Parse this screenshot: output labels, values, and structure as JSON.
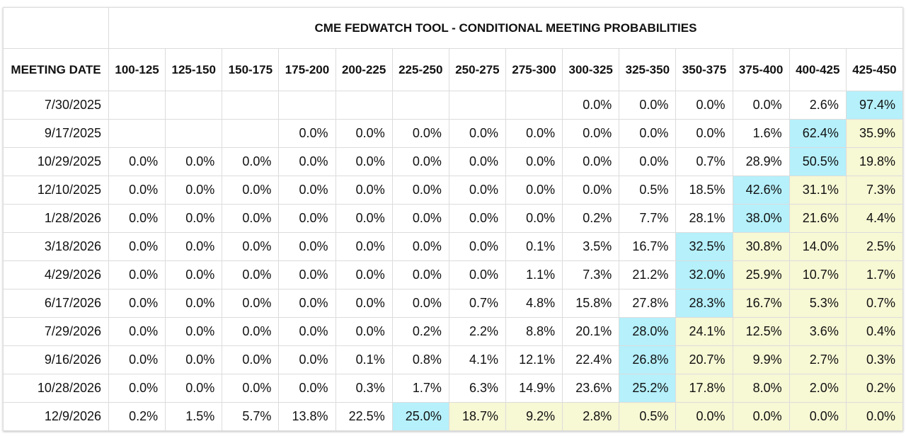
{
  "title": "CME FEDWATCH TOOL - CONDITIONAL MEETING PROBABILITIES",
  "row_header": "MEETING DATE",
  "columns": [
    "100-125",
    "125-150",
    "150-175",
    "175-200",
    "200-225",
    "225-250",
    "250-275",
    "275-300",
    "300-325",
    "325-350",
    "350-375",
    "375-400",
    "400-425",
    "425-450"
  ],
  "rows": [
    {
      "date": "7/30/2025",
      "values": [
        null,
        null,
        null,
        null,
        null,
        null,
        null,
        null,
        "0.0%",
        "0.0%",
        "0.0%",
        "0.0%",
        "2.6%",
        "97.4%"
      ],
      "colors": [
        null,
        null,
        null,
        null,
        null,
        null,
        null,
        null,
        null,
        null,
        null,
        null,
        null,
        "#b5f0fb"
      ]
    },
    {
      "date": "9/17/2025",
      "values": [
        null,
        null,
        null,
        "0.0%",
        "0.0%",
        "0.0%",
        "0.0%",
        "0.0%",
        "0.0%",
        "0.0%",
        "0.0%",
        "1.6%",
        "62.4%",
        "35.9%"
      ],
      "colors": [
        null,
        null,
        null,
        null,
        null,
        null,
        null,
        null,
        null,
        null,
        null,
        null,
        "#b5f0fb",
        "#f7f8d4"
      ]
    },
    {
      "date": "10/29/2025",
      "values": [
        "0.0%",
        "0.0%",
        "0.0%",
        "0.0%",
        "0.0%",
        "0.0%",
        "0.0%",
        "0.0%",
        "0.0%",
        "0.0%",
        "0.7%",
        "28.9%",
        "50.5%",
        "19.8%"
      ],
      "colors": [
        null,
        null,
        null,
        null,
        null,
        null,
        null,
        null,
        null,
        null,
        null,
        null,
        "#b5f0fb",
        "#f7f8d4"
      ]
    },
    {
      "date": "12/10/2025",
      "values": [
        "0.0%",
        "0.0%",
        "0.0%",
        "0.0%",
        "0.0%",
        "0.0%",
        "0.0%",
        "0.0%",
        "0.0%",
        "0.5%",
        "18.5%",
        "42.6%",
        "31.1%",
        "7.3%"
      ],
      "colors": [
        null,
        null,
        null,
        null,
        null,
        null,
        null,
        null,
        null,
        null,
        null,
        "#b5f0fb",
        "#f7f8d4",
        "#f7f8d4"
      ]
    },
    {
      "date": "1/28/2026",
      "values": [
        "0.0%",
        "0.0%",
        "0.0%",
        "0.0%",
        "0.0%",
        "0.0%",
        "0.0%",
        "0.0%",
        "0.2%",
        "7.7%",
        "28.1%",
        "38.0%",
        "21.6%",
        "4.4%"
      ],
      "colors": [
        null,
        null,
        null,
        null,
        null,
        null,
        null,
        null,
        null,
        null,
        null,
        "#b5f0fb",
        "#f7f8d4",
        "#f7f8d4"
      ]
    },
    {
      "date": "3/18/2026",
      "values": [
        "0.0%",
        "0.0%",
        "0.0%",
        "0.0%",
        "0.0%",
        "0.0%",
        "0.0%",
        "0.1%",
        "3.5%",
        "16.7%",
        "32.5%",
        "30.8%",
        "14.0%",
        "2.5%"
      ],
      "colors": [
        null,
        null,
        null,
        null,
        null,
        null,
        null,
        null,
        null,
        null,
        "#b5f0fb",
        "#f7f8d4",
        "#f7f8d4",
        "#f7f8d4"
      ]
    },
    {
      "date": "4/29/2026",
      "values": [
        "0.0%",
        "0.0%",
        "0.0%",
        "0.0%",
        "0.0%",
        "0.0%",
        "0.0%",
        "1.1%",
        "7.3%",
        "21.2%",
        "32.0%",
        "25.9%",
        "10.7%",
        "1.7%"
      ],
      "colors": [
        null,
        null,
        null,
        null,
        null,
        null,
        null,
        null,
        null,
        null,
        "#b5f0fb",
        "#f7f8d4",
        "#f7f8d4",
        "#f7f8d4"
      ]
    },
    {
      "date": "6/17/2026",
      "values": [
        "0.0%",
        "0.0%",
        "0.0%",
        "0.0%",
        "0.0%",
        "0.0%",
        "0.7%",
        "4.8%",
        "15.8%",
        "27.8%",
        "28.3%",
        "16.7%",
        "5.3%",
        "0.7%"
      ],
      "colors": [
        null,
        null,
        null,
        null,
        null,
        null,
        null,
        null,
        null,
        null,
        "#b5f0fb",
        "#f7f8d4",
        "#f7f8d4",
        "#f7f8d4"
      ]
    },
    {
      "date": "7/29/2026",
      "values": [
        "0.0%",
        "0.0%",
        "0.0%",
        "0.0%",
        "0.0%",
        "0.2%",
        "2.2%",
        "8.8%",
        "20.1%",
        "28.0%",
        "24.1%",
        "12.5%",
        "3.6%",
        "0.4%"
      ],
      "colors": [
        null,
        null,
        null,
        null,
        null,
        null,
        null,
        null,
        null,
        "#b5f0fb",
        "#f7f8d4",
        "#f7f8d4",
        "#f7f8d4",
        "#f7f8d4"
      ]
    },
    {
      "date": "9/16/2026",
      "values": [
        "0.0%",
        "0.0%",
        "0.0%",
        "0.0%",
        "0.1%",
        "0.8%",
        "4.1%",
        "12.1%",
        "22.4%",
        "26.8%",
        "20.7%",
        "9.9%",
        "2.7%",
        "0.3%"
      ],
      "colors": [
        null,
        null,
        null,
        null,
        null,
        null,
        null,
        null,
        null,
        "#b5f0fb",
        "#f7f8d4",
        "#f7f8d4",
        "#f7f8d4",
        "#f7f8d4"
      ]
    },
    {
      "date": "10/28/2026",
      "values": [
        "0.0%",
        "0.0%",
        "0.0%",
        "0.0%",
        "0.3%",
        "1.7%",
        "6.3%",
        "14.9%",
        "23.6%",
        "25.2%",
        "17.8%",
        "8.0%",
        "2.0%",
        "0.2%"
      ],
      "colors": [
        null,
        null,
        null,
        null,
        null,
        null,
        null,
        null,
        null,
        "#b5f0fb",
        "#f7f8d4",
        "#f7f8d4",
        "#f7f8d4",
        "#f7f8d4"
      ]
    },
    {
      "date": "12/9/2026",
      "values": [
        "0.2%",
        "1.5%",
        "5.7%",
        "13.8%",
        "22.5%",
        "25.0%",
        "18.7%",
        "9.2%",
        "2.8%",
        "0.5%",
        "0.0%",
        "0.0%",
        "0.0%",
        "0.0%"
      ],
      "colors": [
        null,
        null,
        null,
        null,
        null,
        "#b5f0fb",
        "#f7f8d4",
        "#f7f8d4",
        "#f7f8d4",
        "#f7f8d4",
        "#f7f8d4",
        "#f7f8d4",
        "#f7f8d4",
        "#f7f8d4"
      ]
    }
  ]
}
